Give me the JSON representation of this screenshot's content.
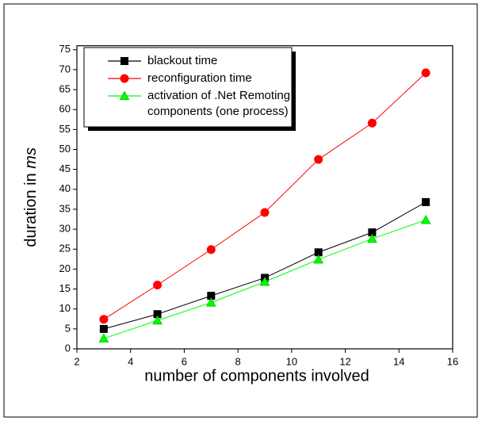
{
  "chart_data": {
    "type": "line",
    "x_label": "number of components involved",
    "y_label": [
      "duration in",
      "ms"
    ],
    "x": [
      3,
      5,
      7,
      9,
      11,
      13,
      15
    ],
    "series": [
      {
        "name": "blackout time",
        "color": "#000000",
        "marker": "square",
        "values": [
          5.0,
          8.7,
          13.3,
          17.8,
          24.2,
          29.2,
          36.8
        ]
      },
      {
        "name": "reconfiguration time",
        "color": "#ff0000",
        "marker": "circle",
        "values": [
          7.4,
          16.0,
          24.9,
          34.2,
          47.5,
          56.6,
          69.2
        ]
      },
      {
        "name": "activation of .Net Remoting\ncomponents (one process)",
        "color": "#00ff00",
        "marker": "triangle",
        "values": [
          2.6,
          7.1,
          11.6,
          16.8,
          22.4,
          27.6,
          32.3
        ]
      }
    ],
    "xlim": [
      2,
      16
    ],
    "xticks": [
      2,
      4,
      6,
      8,
      10,
      12,
      14,
      16
    ],
    "ylim": [
      0,
      76
    ],
    "yticks": [
      0,
      5,
      10,
      15,
      20,
      25,
      30,
      35,
      40,
      45,
      50,
      55,
      60,
      65,
      70,
      75
    ],
    "legend": "top-left",
    "grid": false
  }
}
